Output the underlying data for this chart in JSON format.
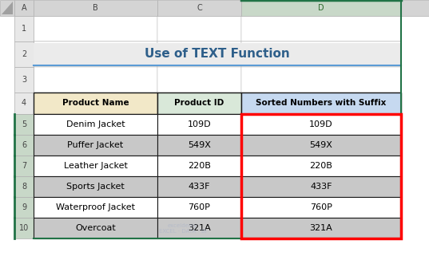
{
  "title": "Use of TEXT Function",
  "col_headers": [
    "Product Name",
    "Product ID",
    "Sorted Numbers with Suffix"
  ],
  "rows": [
    [
      "Denim Jacket",
      "109D",
      "109D"
    ],
    [
      "Puffer Jacket",
      "549X",
      "549X"
    ],
    [
      "Leather Jacket",
      "220B",
      "220B"
    ],
    [
      "Sports Jacket",
      "433F",
      "433F"
    ],
    [
      "Waterproof Jacket",
      "760P",
      "760P"
    ],
    [
      "Overcoat",
      "321A",
      "321A"
    ]
  ],
  "col_header_bg": [
    "#f2e8c8",
    "#d9e8d9",
    "#c6d9f0"
  ],
  "row_bg_white": "#ffffff",
  "row_bg_gray": "#c8c8c8",
  "title_color": "#2e5f8a",
  "grid_color": "#000000",
  "red_box_color": "#ff0000",
  "excel_bg": "#e4e4e4",
  "excel_col_hdr_bg": "#d4d4d4",
  "excel_col_d_hdr_bg": "#c8d8c8",
  "excel_row_hdr_bg": "#e8e8e8",
  "excel_row_hdr_selected_bg": "#c8d8c8",
  "cell_border_color": "#b0b0b0",
  "table_border_color": "#1a1a1a",
  "green_top_border": "#217346",
  "blue_underline": "#5b9bd5",
  "watermark_text": "exceldemy\nEXCEL · DATA · BI",
  "watermark_color": "#b0b8c8",
  "figsize": [
    5.37,
    3.21
  ],
  "dpi": 100
}
